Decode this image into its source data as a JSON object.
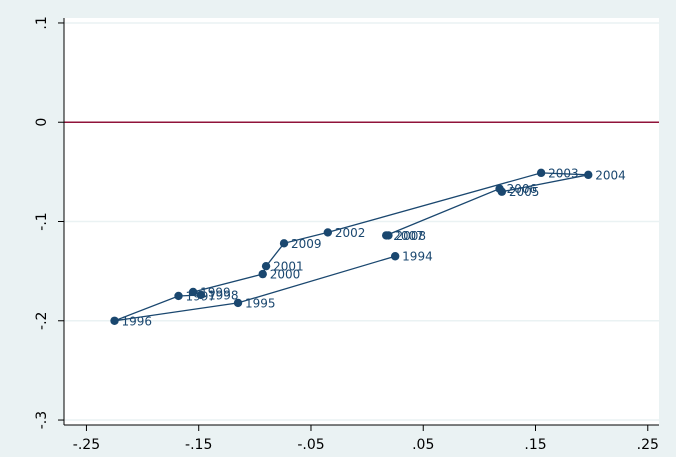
{
  "chart_data": {
    "type": "scatter",
    "title": "",
    "xlabel": "",
    "ylabel": "",
    "xlim": [
      -0.27,
      0.26
    ],
    "ylim": [
      -0.305,
      0.105
    ],
    "x_ticks": [
      {
        "value": -0.25,
        "label": "-.25"
      },
      {
        "value": -0.15,
        "label": "-.15"
      },
      {
        "value": -0.05,
        "label": "-.05"
      },
      {
        "value": 0.05,
        "label": ".05"
      },
      {
        "value": 0.15,
        "label": ".15"
      },
      {
        "value": 0.25,
        "label": ".25"
      }
    ],
    "y_ticks": [
      {
        "value": 0.1,
        "label": ".1"
      },
      {
        "value": 0.0,
        "label": "0"
      },
      {
        "value": -0.1,
        "label": "-.1"
      },
      {
        "value": -0.2,
        "label": "-.2"
      },
      {
        "value": -0.3,
        "label": "-.3"
      }
    ],
    "reference_line": {
      "y": 0.0,
      "color": "#90133a"
    },
    "connected": true,
    "series": [
      {
        "color": "#1a476f",
        "points": [
          {
            "label": "1994",
            "x": 0.025,
            "y": -0.135
          },
          {
            "label": "1995",
            "x": -0.115,
            "y": -0.182
          },
          {
            "label": "1996",
            "x": -0.225,
            "y": -0.2
          },
          {
            "label": "1997",
            "x": -0.168,
            "y": -0.175
          },
          {
            "label": "1998",
            "x": -0.148,
            "y": -0.174
          },
          {
            "label": "1999",
            "x": -0.155,
            "y": -0.171
          },
          {
            "label": "2000",
            "x": -0.093,
            "y": -0.153
          },
          {
            "label": "2001",
            "x": -0.09,
            "y": -0.145
          },
          {
            "label": "2009",
            "x": -0.074,
            "y": -0.122
          },
          {
            "label": "2002",
            "x": -0.035,
            "y": -0.111
          },
          {
            "label": "2003",
            "x": 0.155,
            "y": -0.051
          },
          {
            "label": "2004",
            "x": 0.197,
            "y": -0.053
          },
          {
            "label": "2005",
            "x": 0.12,
            "y": -0.07
          },
          {
            "label": "2006",
            "x": 0.118,
            "y": -0.067
          },
          {
            "label": "2007",
            "x": 0.017,
            "y": -0.114
          },
          {
            "label": "2008",
            "x": 0.019,
            "y": -0.114
          }
        ]
      }
    ]
  }
}
